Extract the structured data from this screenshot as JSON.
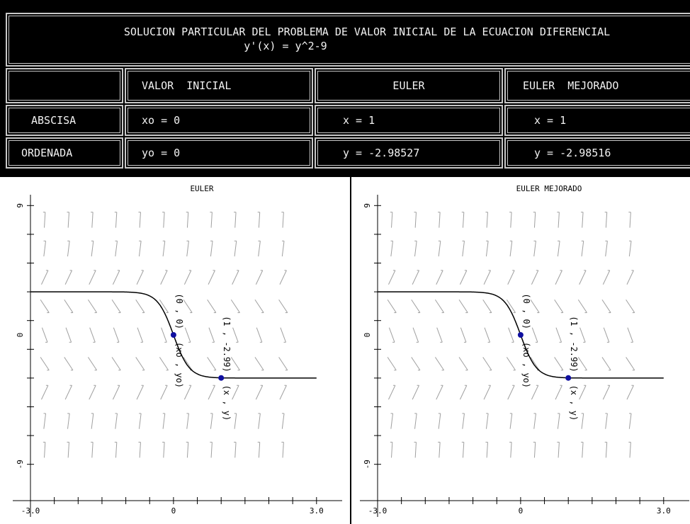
{
  "header": {
    "title_line1": "SOLUCION PARTICULAR DEL PROBLEMA DE VALOR INICIAL DE LA ECUACION DIFERENCIAL",
    "title_line2": "y'(x) = y^2-9"
  },
  "table": {
    "col_headers": [
      "VALOR  INICIAL",
      "EULER",
      "EULER  MEJORADO"
    ],
    "rows": [
      {
        "label": "ABSCISA",
        "cells": [
          "xo = 0",
          "x = 1",
          "x = 1"
        ]
      },
      {
        "label": "ORDENADA",
        "cells": [
          "yo = 0",
          "y = -2.98527",
          "y = -2.98516"
        ]
      }
    ]
  },
  "chart_data": [
    {
      "type": "line",
      "title": "EULER",
      "xlim": [
        -3.0,
        3.0
      ],
      "ylim": [
        -9,
        9
      ],
      "x_tick_labels": [
        "-3.0",
        "0",
        "3.0"
      ],
      "y_tick_labels": [
        "9",
        "0",
        "-9"
      ],
      "grid": false,
      "direction_field": true,
      "points": [
        {
          "x": 0,
          "y": 0,
          "label": "(xo , yo)",
          "value_label": "(0 , 0)"
        },
        {
          "x": 1,
          "y": -2.99,
          "label": "(x , y)",
          "value_label": "(1 , -2.99)"
        }
      ],
      "colors": {
        "curve": "#000000",
        "field": "#a0a0a0",
        "points": "#1010a0"
      }
    },
    {
      "type": "line",
      "title": "EULER MEJORADO",
      "xlim": [
        -3.0,
        3.0
      ],
      "ylim": [
        -9,
        9
      ],
      "x_tick_labels": [
        "-3.0",
        "0",
        "3.0"
      ],
      "y_tick_labels": [
        "9",
        "0",
        "-9"
      ],
      "grid": false,
      "direction_field": true,
      "points": [
        {
          "x": 0,
          "y": 0,
          "label": "(xo , yo)",
          "value_label": "(0 , 0)"
        },
        {
          "x": 1,
          "y": -2.99,
          "label": "(x , y)",
          "value_label": "(1 , -2.99)"
        }
      ],
      "colors": {
        "curve": "#000000",
        "field": "#a0a0a0",
        "points": "#1010a0"
      }
    }
  ]
}
